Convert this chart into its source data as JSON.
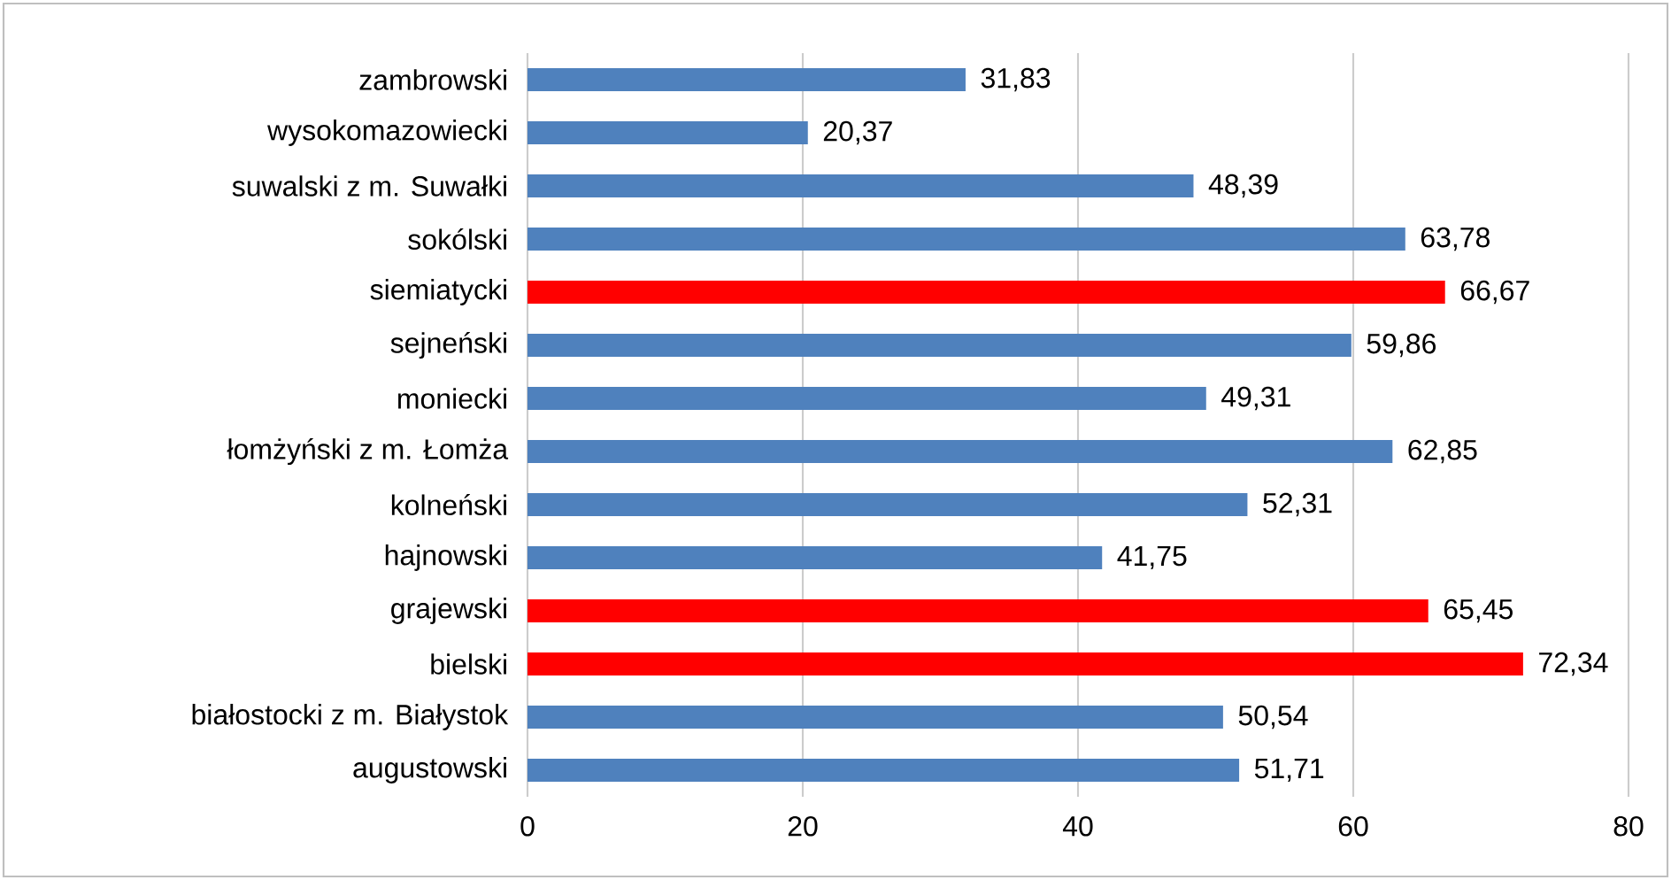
{
  "chart_data": {
    "type": "bar",
    "orientation": "horizontal",
    "categories": [
      "zambrowski",
      "wysokomazowiecki",
      "suwalski z m. Suwałki",
      "sokólski",
      "siemiatycki",
      "sejneński",
      "moniecki",
      "łomżyński z m. Łomża",
      "kolneński",
      "hajnowski",
      "grajewski",
      "bielski",
      "białostocki z m. Białystok",
      "augustowski"
    ],
    "values": [
      31.83,
      20.37,
      48.39,
      63.78,
      66.67,
      59.86,
      49.31,
      62.85,
      52.31,
      41.75,
      65.45,
      72.34,
      50.54,
      51.71
    ],
    "value_labels": [
      "31,83",
      "20,37",
      "48,39",
      "63,78",
      "66,67",
      "59,86",
      "49,31",
      "62,85",
      "52,31",
      "41,75",
      "65,45",
      "72,34",
      "50,54",
      "51,71"
    ],
    "colors": [
      "#4f81bd",
      "#4f81bd",
      "#4f81bd",
      "#4f81bd",
      "#ff0000",
      "#4f81bd",
      "#4f81bd",
      "#4f81bd",
      "#4f81bd",
      "#4f81bd",
      "#ff0000",
      "#ff0000",
      "#4f81bd",
      "#4f81bd"
    ],
    "xlim": [
      0,
      80
    ],
    "xticks": [
      0,
      20,
      40,
      60,
      80
    ],
    "grid": "x"
  }
}
